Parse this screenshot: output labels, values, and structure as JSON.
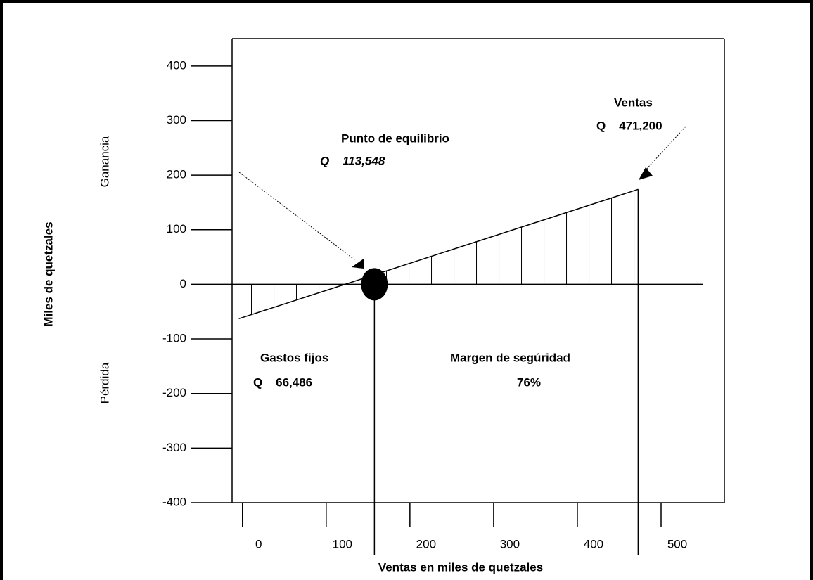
{
  "chart_data": {
    "type": "line",
    "y_label": "Miles de quetzales",
    "x_label": "Ventas en miles de quetzales",
    "region_labels": [
      "Ganancia",
      "Pérdida"
    ],
    "x": [
      -17,
      460
    ],
    "values": [
      -63,
      174
    ],
    "color": "#000000",
    "break_even": {
      "x": 145,
      "y": 0
    },
    "xlim": [
      -25,
      563
    ],
    "xticks": [
      0,
      100,
      200,
      300,
      400,
      500
    ],
    "ylim": [
      -400,
      450
    ],
    "yticks": [
      400,
      300,
      200,
      100,
      0,
      -100,
      -200,
      -300,
      -400
    ],
    "annotations": [
      "Punto de equilibrio",
      "Q    113,548",
      "Ventas",
      "Q    471,200",
      "Gastos fijos",
      "Q    66,486",
      "Margen de segúridad",
      "76%"
    ]
  }
}
